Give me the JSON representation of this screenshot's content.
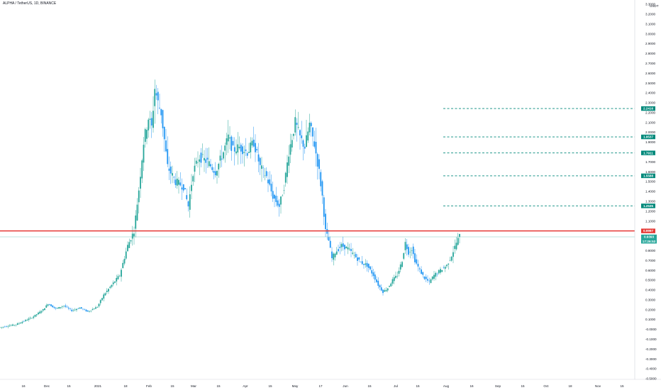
{
  "header": {
    "symbol_title": "ALPHA / TetherUS, 1D, BINANCE"
  },
  "colors": {
    "up": "#26a69a",
    "down": "#2196f3",
    "resistance": "#e53935",
    "target": "#00897b",
    "price": "#26a69a"
  },
  "axis": {
    "currency": "USDT"
  },
  "chart_data": {
    "type": "candlestick",
    "title": "ALPHA / TetherUS, 1D, BINANCE",
    "ylim": [
      -0.5,
      3.3
    ],
    "y_ticks": [
      "3.3000",
      "3.2000",
      "3.1000",
      "3.0000",
      "2.9000",
      "2.8000",
      "2.7000",
      "2.6000",
      "2.5000",
      "2.4000",
      "2.3000",
      "2.2000",
      "2.1000",
      "2.0000",
      "1.9000",
      "1.8000",
      "1.7000",
      "1.6000",
      "1.5000",
      "1.4000",
      "1.3000",
      "1.2000",
      "1.1000",
      "1.0000",
      "0.9000",
      "0.8000",
      "0.7000",
      "0.6000",
      "0.5000",
      "0.4000",
      "0.3000",
      "0.2000",
      "0.1000",
      "-0.0000",
      "-0.1000",
      "-0.2000",
      "-0.3000",
      "-0.4000",
      "-0.5000"
    ],
    "x_ticks": [
      "16",
      "Dec",
      "15",
      "2021",
      "18",
      "Feb",
      "15",
      "Mar",
      "15",
      "Apr",
      "15",
      "May",
      "17",
      "Jun",
      "15",
      "Jul",
      "15",
      "Aug",
      "16",
      "Sep",
      "15",
      "Oct",
      "18",
      "Nov",
      "15"
    ],
    "series": [
      {
        "keypoints": [
          [
            0,
            0.02
          ],
          [
            10,
            0.05
          ],
          [
            20,
            0.12
          ],
          [
            27,
            0.2
          ],
          [
            30,
            0.26
          ],
          [
            35,
            0.21
          ],
          [
            40,
            0.24
          ],
          [
            45,
            0.19
          ],
          [
            50,
            0.22
          ],
          [
            55,
            0.18
          ],
          [
            61,
            0.23
          ],
          [
            65,
            0.35
          ],
          [
            70,
            0.45
          ],
          [
            75,
            0.55
          ],
          [
            80,
            0.85
          ],
          [
            84,
            1.0
          ],
          [
            87,
            1.42
          ],
          [
            90,
            1.9
          ],
          [
            93,
            2.15
          ],
          [
            95,
            2.05
          ],
          [
            97,
            2.45
          ],
          [
            99,
            2.3
          ],
          [
            101,
            2.2
          ],
          [
            105,
            1.65
          ],
          [
            110,
            1.5
          ],
          [
            115,
            1.45
          ],
          [
            118,
            1.25
          ],
          [
            121,
            1.6
          ],
          [
            125,
            1.75
          ],
          [
            130,
            1.7
          ],
          [
            135,
            1.6
          ],
          [
            140,
            1.8
          ],
          [
            143,
            1.95
          ],
          [
            146,
            1.82
          ],
          [
            150,
            1.85
          ],
          [
            155,
            1.8
          ],
          [
            159,
            1.9
          ],
          [
            163,
            1.65
          ],
          [
            167,
            1.55
          ],
          [
            171,
            1.35
          ],
          [
            175,
            1.25
          ],
          [
            178,
            1.45
          ],
          [
            181,
            1.8
          ],
          [
            185,
            2.1
          ],
          [
            188,
            1.95
          ],
          [
            191,
            1.85
          ],
          [
            194,
            2.08
          ],
          [
            197,
            1.88
          ],
          [
            200,
            1.6
          ],
          [
            202,
            1.35
          ],
          [
            204,
            1.0
          ],
          [
            206,
            0.9
          ],
          [
            208,
            0.72
          ],
          [
            210,
            0.78
          ],
          [
            214,
            0.85
          ],
          [
            218,
            0.82
          ],
          [
            222,
            0.75
          ],
          [
            226,
            0.68
          ],
          [
            230,
            0.65
          ],
          [
            234,
            0.55
          ],
          [
            237,
            0.45
          ],
          [
            240,
            0.38
          ],
          [
            243,
            0.42
          ],
          [
            246,
            0.5
          ],
          [
            249,
            0.55
          ],
          [
            252,
            0.7
          ],
          [
            254,
            0.88
          ],
          [
            256,
            0.78
          ],
          [
            258,
            0.82
          ],
          [
            260,
            0.7
          ],
          [
            263,
            0.6
          ],
          [
            266,
            0.52
          ],
          [
            269,
            0.48
          ],
          [
            272,
            0.55
          ],
          [
            276,
            0.6
          ],
          [
            280,
            0.65
          ],
          [
            283,
            0.75
          ],
          [
            286,
            0.88
          ],
          [
            288,
            0.95
          ]
        ]
      }
    ],
    "levels": [
      {
        "value": 2.2416,
        "label": "2.2416",
        "kind": "target"
      },
      {
        "value": 1.9537,
        "label": "1.9537",
        "kind": "target"
      },
      {
        "value": 1.7911,
        "label": "1.7911",
        "kind": "target"
      },
      {
        "value": 1.5588,
        "label": "1.5588",
        "kind": "target"
      },
      {
        "value": 1.2535,
        "label": "1.2535",
        "kind": "target"
      },
      {
        "value": 0.9997,
        "label": "0.9997",
        "kind": "resistance"
      }
    ],
    "current_price": {
      "value": 0.9393,
      "label": "0.9393",
      "countdown": "17:26:53"
    }
  }
}
